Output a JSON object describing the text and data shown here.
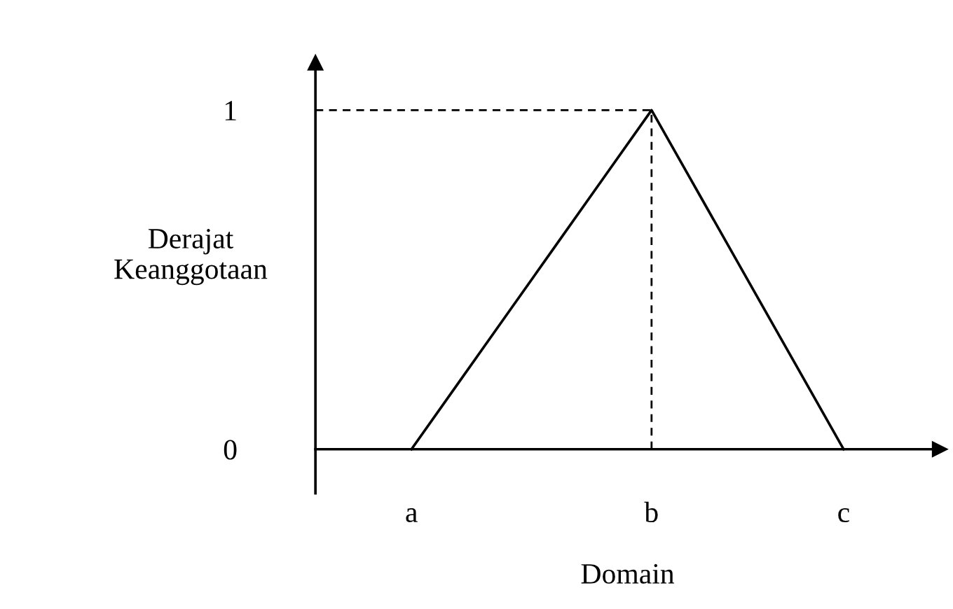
{
  "chart_data": {
    "type": "line",
    "xlabel": "Domain",
    "ylabel": "Derajat\nKeanggotaan",
    "categories": [
      null,
      null,
      "a",
      null,
      null,
      null,
      null,
      "b",
      null,
      null,
      null,
      "c",
      null,
      null
    ],
    "series": [
      {
        "values": [
          null,
          null,
          0,
          0.2,
          0.4,
          0.6,
          0.8,
          1,
          0.75,
          0.5,
          0.25,
          0,
          null,
          null
        ],
        "color": "#000000"
      }
    ],
    "ref_lines": [
      {
        "axis": "x",
        "value": "b",
        "color": "#000000",
        "line_style": "dashed"
      },
      {
        "axis": "y",
        "value": 1,
        "color": "#000000",
        "line_style": "dashed"
      }
    ],
    "ylim": [
      -0.13,
      1.14
    ],
    "yticks": [
      0,
      1
    ],
    "grid": false,
    "legend": false,
    "marker": "none",
    "line_style": "solid"
  }
}
